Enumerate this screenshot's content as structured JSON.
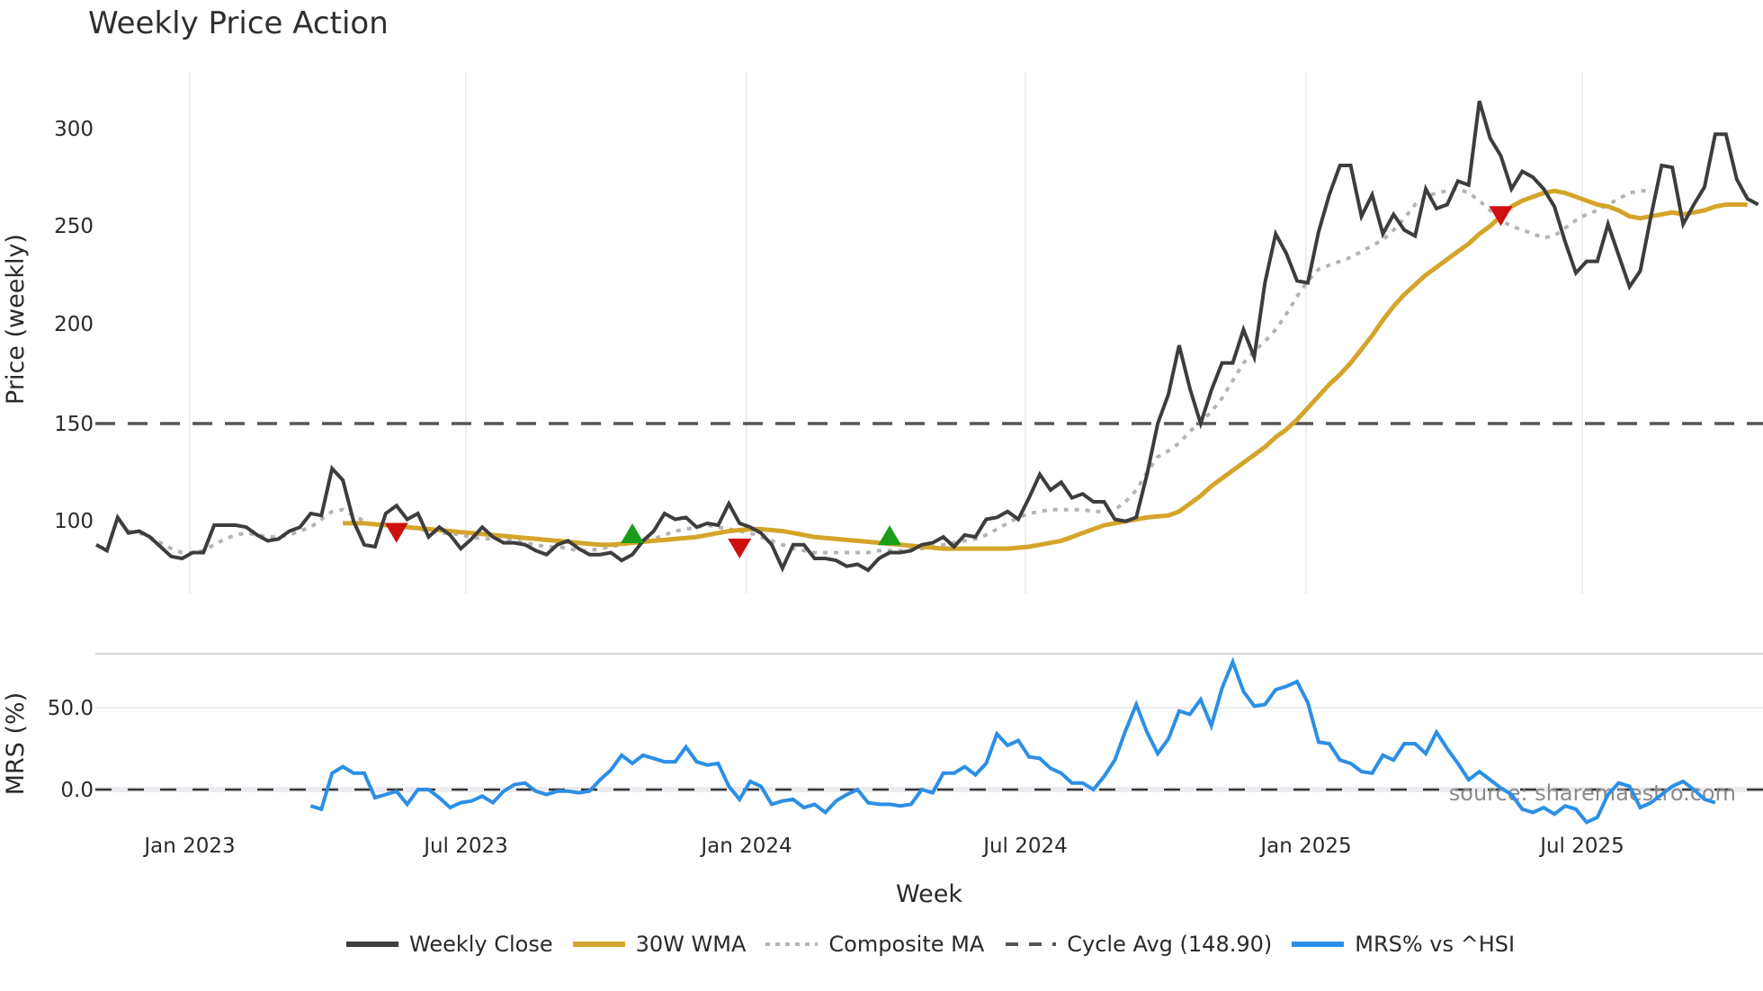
{
  "title": "Weekly Price Action",
  "price_panel": {
    "ylabel": "Price (weekly)",
    "yticks": [
      "300",
      "250",
      "200",
      "150",
      "100"
    ]
  },
  "mrs_panel": {
    "ylabel": "MRS (%)",
    "yticks": [
      "50.0",
      "0.0"
    ]
  },
  "xaxis": {
    "label": "Week",
    "ticks": [
      "Jan 2023",
      "Jul 2023",
      "Jan 2024",
      "Jul 2024",
      "Jan 2025",
      "Jul 2025"
    ]
  },
  "source": "source: sharemaestro.com",
  "legend": [
    {
      "label": "Weekly Close",
      "color": "#3d3d3d",
      "style": "solid"
    },
    {
      "label": "30W WMA",
      "color": "#d4a52a",
      "style": "solid"
    },
    {
      "label": "Composite MA",
      "color": "#b0b0b0",
      "style": "dotted"
    },
    {
      "label": "Cycle Avg (148.90)",
      "color": "#555555",
      "style": "dashed"
    },
    {
      "label": "MRS% vs ^HSI",
      "color": "#2b8fe6",
      "style": "solid"
    }
  ],
  "chart_data": [
    {
      "type": "line",
      "title": "Weekly Price Action",
      "xlabel": "Week",
      "ylabel": "Price (weekly)",
      "ylim": [
        70,
        325
      ],
      "grid": "vertical",
      "x_ticks": [
        "Jan 2023",
        "Jul 2023",
        "Jan 2024",
        "Jul 2024",
        "Jan 2025",
        "Jul 2025"
      ],
      "x_start_week_index": 0,
      "series": [
        {
          "name": "Weekly Close",
          "color": "#3d3d3d",
          "start": 0,
          "values": [
            88,
            85,
            102,
            94,
            95,
            92,
            87,
            82,
            81,
            84,
            84,
            98,
            98,
            98,
            97,
            93,
            90,
            91,
            95,
            97,
            104,
            103,
            127,
            121,
            100,
            88,
            87,
            104,
            108,
            101,
            104,
            92,
            97,
            93,
            86,
            91,
            97,
            92,
            89,
            89,
            88,
            85,
            83,
            88,
            90,
            86,
            83,
            83,
            84,
            80,
            83,
            90,
            95,
            104,
            101,
            102,
            97,
            99,
            98,
            109,
            99,
            97,
            94,
            88,
            76,
            88,
            88,
            81,
            81,
            80,
            77,
            78,
            75,
            81,
            84,
            84,
            85,
            88,
            89,
            92,
            87,
            93,
            92,
            101,
            102,
            105,
            101,
            112,
            124,
            116,
            120,
            112,
            114,
            110,
            110,
            101,
            100,
            102,
            124,
            150,
            165,
            190,
            168,
            150,
            167,
            181,
            181,
            198,
            184,
            222,
            247,
            237,
            223,
            222,
            248,
            267,
            282,
            282,
            256,
            267,
            247,
            257,
            249,
            246,
            270,
            260,
            262,
            274,
            272,
            315,
            296,
            287,
            270,
            279,
            276,
            270,
            261,
            243,
            227,
            233,
            233,
            252,
            236,
            220,
            228,
            256,
            282,
            281,
            252,
            262,
            271,
            298,
            298,
            275,
            265,
            262
          ]
        },
        {
          "name": "30W WMA",
          "color": "#d4a52a",
          "start": 23,
          "values": [
            99,
            99,
            99,
            98.5,
            98,
            97.5,
            97,
            96.5,
            96,
            95.5,
            95,
            94.5,
            94,
            93.5,
            93,
            92.5,
            92,
            91.5,
            91,
            90.5,
            90,
            89.5,
            89,
            88.5,
            88,
            88,
            88.5,
            89,
            89.5,
            90,
            90.5,
            91,
            91.5,
            92,
            93,
            94,
            95,
            95.5,
            96,
            96,
            95.5,
            95,
            94,
            93,
            92,
            91.5,
            91,
            90.5,
            90,
            89.5,
            89,
            88.5,
            88,
            87.5,
            87,
            86.5,
            86,
            86,
            86,
            86,
            86,
            86,
            86,
            86.5,
            87,
            88,
            89,
            90,
            92,
            94,
            96,
            98,
            99,
            100,
            101,
            102,
            102.5,
            103,
            105,
            109,
            113,
            118,
            122,
            126,
            130,
            134,
            138,
            143,
            147,
            152,
            158,
            164,
            170,
            175,
            181,
            188,
            195,
            203,
            210,
            216,
            221,
            226,
            230,
            234,
            238,
            242,
            247,
            251,
            256,
            261,
            264,
            266,
            268,
            269,
            268,
            266,
            264,
            262,
            261,
            259,
            256,
            255,
            256,
            257,
            258,
            257,
            258,
            259,
            261,
            262,
            262,
            262
          ]
        },
        {
          "name": "Composite MA",
          "color": "#b0b0b0",
          "start": 3,
          "values": [
            95,
            94,
            92,
            89,
            86,
            84,
            84,
            85,
            88,
            91,
            93,
            94,
            93,
            92,
            92,
            93,
            95,
            97,
            101,
            105,
            106,
            103,
            100,
            98,
            98,
            98,
            97,
            96,
            95,
            94,
            94,
            93,
            92,
            91,
            91,
            91,
            90,
            89,
            88,
            87,
            87,
            86,
            85,
            85,
            86,
            87,
            88,
            89,
            90,
            91,
            93,
            95,
            96,
            97,
            98,
            97,
            96,
            95,
            94,
            92,
            90,
            88,
            86,
            85,
            84,
            84,
            84,
            84,
            84,
            84,
            85,
            85,
            85,
            86,
            86,
            87,
            88,
            89,
            90,
            91,
            93,
            96,
            99,
            102,
            104,
            105,
            106,
            106,
            106,
            106,
            105,
            105,
            106,
            110,
            116,
            125,
            133,
            136,
            140,
            146,
            151,
            156,
            163,
            172,
            181,
            187,
            192,
            198,
            206,
            215,
            223,
            229,
            231,
            233,
            235,
            238,
            241,
            244,
            249,
            255,
            262,
            266,
            268,
            269,
            270,
            268,
            264,
            259,
            254,
            251,
            249,
            247,
            245,
            246,
            250,
            254,
            257,
            259,
            262,
            265,
            268,
            269,
            269
          ]
        },
        {
          "name": "Cycle Avg (148.90)",
          "color": "#555555",
          "style": "dashed",
          "constant": 148.9
        }
      ],
      "markers": [
        {
          "type": "sell",
          "shape": "triangle-down",
          "color": "#d01010",
          "week": 28,
          "price": 95
        },
        {
          "type": "buy",
          "shape": "triangle-up",
          "color": "#1a9e1a",
          "week": 50,
          "price": 93
        },
        {
          "type": "sell",
          "shape": "triangle-down",
          "color": "#d01010",
          "week": 60,
          "price": 87
        },
        {
          "type": "buy",
          "shape": "triangle-up",
          "color": "#1a9e1a",
          "week": 74,
          "price": 92
        },
        {
          "type": "sell",
          "shape": "triangle-down",
          "color": "#d01010",
          "week": 131,
          "price": 257
        }
      ]
    },
    {
      "type": "line",
      "ylabel": "MRS (%)",
      "ylim": [
        -25,
        85
      ],
      "y_ticks": [
        0.0,
        50.0
      ],
      "series": [
        {
          "name": "MRS% vs ^HSI",
          "color": "#2b8fe6",
          "start": 20,
          "values": [
            -10,
            -12,
            10,
            14,
            10,
            10,
            -5,
            -3,
            -1,
            -9,
            0,
            0,
            -5,
            -11,
            -8,
            -7,
            -4,
            -8,
            -1,
            3,
            4,
            -1,
            -3,
            -1,
            -1,
            -2,
            -1,
            6,
            12,
            21,
            16,
            21,
            19,
            17,
            17,
            26,
            17,
            15,
            16,
            2,
            -6,
            5,
            2,
            -9,
            -7,
            -6,
            -11,
            -9,
            -14,
            -7,
            -3,
            0,
            -8,
            -9,
            -9,
            -10,
            -9,
            0,
            -2,
            10,
            10,
            14,
            9,
            16,
            34,
            27,
            30,
            20,
            19,
            13,
            10,
            4,
            4,
            0,
            8,
            18,
            36,
            52,
            35,
            22,
            31,
            48,
            46,
            55,
            39,
            62,
            78,
            60,
            51,
            52,
            61,
            63,
            66,
            53,
            29,
            28,
            18,
            16,
            11,
            10,
            21,
            18,
            28,
            28,
            22,
            35,
            25,
            16,
            6,
            11,
            6,
            1,
            -3,
            -12,
            -14,
            -11,
            -15,
            -10,
            -12,
            -20,
            -17,
            -3,
            4,
            2,
            -11,
            -8,
            -3,
            2,
            5,
            0,
            -6,
            -8
          ]
        },
        {
          "name": "Zero line",
          "color": "#333333",
          "style": "dashed",
          "constant": 0
        }
      ]
    }
  ]
}
